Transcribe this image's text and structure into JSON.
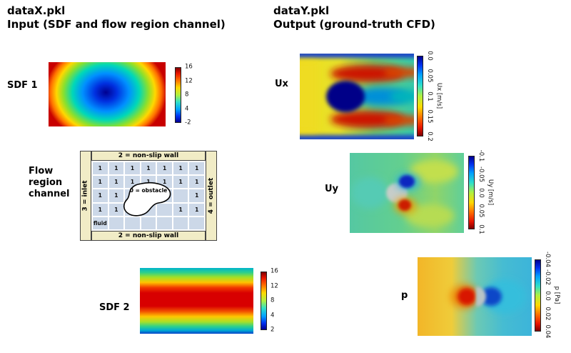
{
  "figure": {
    "left": {
      "title_line1": "dataX.pkl",
      "title_line2": "Input (SDF and flow region channel)",
      "sdf1": {
        "label": "SDF 1",
        "colormap": "jet",
        "colorbar_ticks": [
          "16",
          "12",
          "8",
          "4",
          "-2"
        ]
      },
      "flow_region": {
        "label_line1": "Flow",
        "label_line2": "region",
        "label_line3": "channel",
        "top_wall": "2 = non-slip wall",
        "bottom_wall": "2 = non-slip wall",
        "inlet": "3 = inlet",
        "outlet": "4 = outlet",
        "obstacle": "0 = obstacle",
        "grid": [
          [
            "1",
            "1",
            "1",
            "1",
            "1",
            "1",
            "1"
          ],
          [
            "1",
            "1",
            "1",
            "1",
            "1",
            "1",
            "1"
          ],
          [
            "1",
            "1",
            "1",
            "",
            "",
            "",
            "1"
          ],
          [
            "1",
            "1",
            "1",
            "",
            "",
            "1",
            "1"
          ],
          [
            "fluid",
            "",
            "",
            "",
            "",
            "",
            ""
          ]
        ]
      },
      "sdf2": {
        "label": "SDF 2",
        "colormap": "jet",
        "colorbar_ticks": [
          "16",
          "12",
          "8",
          "4",
          "2"
        ]
      }
    },
    "right": {
      "title_line1": "dataY.pkl",
      "title_line2": "Output (ground-truth CFD)",
      "ux": {
        "label": "Ux",
        "colorbar_label": "Ux [m/s]",
        "colormap": "jet",
        "colorbar_ticks": [
          "0.0",
          "0.05",
          "0.1",
          "0.15",
          "0.2"
        ]
      },
      "uy": {
        "label": "Uy",
        "colorbar_label": "Uy [m/s]",
        "colormap": "jet",
        "colorbar_ticks": [
          "-0.1",
          "-0.05",
          "0.0",
          "0.05",
          "0.1"
        ]
      },
      "p": {
        "label": "p",
        "colorbar_label": "p [Pa]",
        "colormap": "jet",
        "colorbar_ticks": [
          "-0.04",
          "-0.02",
          "0.0",
          "0.02",
          "0.04"
        ]
      }
    }
  }
}
